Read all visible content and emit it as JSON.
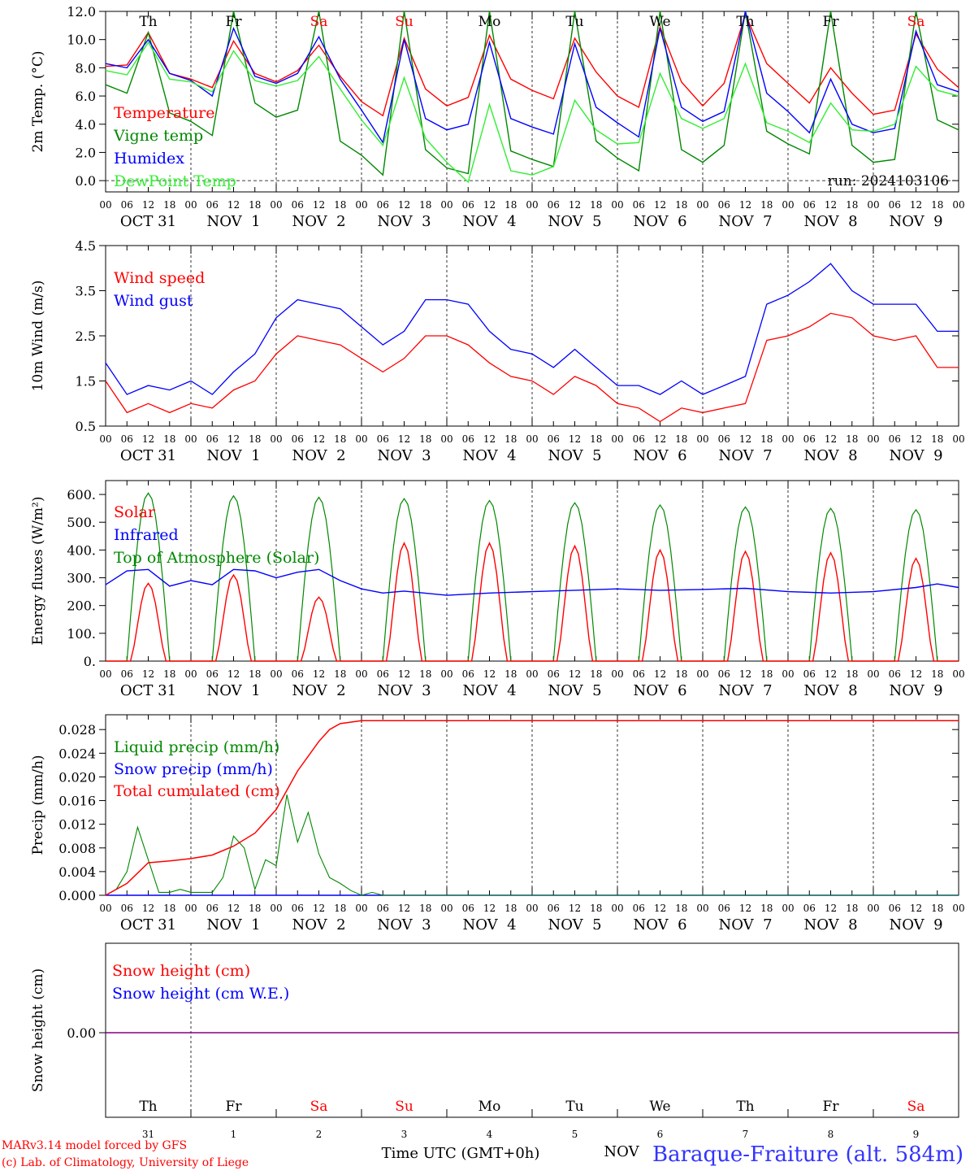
{
  "meteogram": {
    "run_label": "run: 2024103106",
    "days": [
      "Th",
      "Fr",
      "Sa",
      "Su",
      "Mo",
      "Tu",
      "We",
      "Th",
      "Fr",
      "Sa"
    ],
    "day_colors": [
      "#000000",
      "#000000",
      "#ff0000",
      "#ff0000",
      "#000000",
      "#000000",
      "#000000",
      "#000000",
      "#000000",
      "#ff0000"
    ],
    "date_labels": [
      "OCT 31",
      "NOV  1",
      "NOV  2",
      "NOV  3",
      "NOV  4",
      "NOV  5",
      "NOV  6",
      "NOV  7",
      "NOV  8",
      "NOV  9"
    ],
    "hour_labels": [
      "00",
      "06",
      "12",
      "18"
    ],
    "bottom_day_numbers": [
      "31",
      "1",
      "2",
      "3",
      "4",
      "5",
      "6",
      "7",
      "8",
      "9"
    ],
    "bottom_month": "NOV",
    "xlabel": "Time UTC (GMT+0h)",
    "footer_left": [
      "MARv3.14 model forced by GFS",
      "(c) Lab. of Climatology, University of Liege"
    ],
    "footer_right": "Baraque-Fraiture (alt. 584m)",
    "colors": {
      "red": "#ff0000",
      "green": "#008800",
      "blue": "#0000ff",
      "light_green": "#33ee33",
      "purple": "#800080"
    }
  },
  "chart_data": [
    {
      "type": "line",
      "ylabel": "2m Temp. (°C)",
      "ylim": [
        -0.8,
        12.0
      ],
      "yticks": [
        "0.0",
        "2.0",
        "4.0",
        "6.0",
        "8.0",
        "10.0",
        "12.0"
      ],
      "ytick_values": [
        0,
        2,
        4,
        6,
        8,
        10,
        12
      ],
      "reference_line": 0,
      "x_hours": [
        0,
        6,
        12,
        18,
        24,
        30,
        36,
        42,
        48,
        54,
        60,
        66,
        72,
        78,
        84,
        90,
        96,
        102,
        108,
        114,
        120,
        126,
        132,
        138,
        144,
        150,
        156,
        162,
        168,
        174,
        180,
        186,
        192,
        198,
        204,
        210,
        216,
        222,
        228,
        234,
        240
      ],
      "series": [
        {
          "name": "Temperature",
          "color": "#ff0000",
          "values": [
            8.1,
            8.2,
            10.5,
            7.6,
            7.2,
            6.6,
            9.9,
            7.6,
            7.0,
            7.8,
            9.6,
            7.4,
            5.6,
            4.6,
            10.1,
            6.5,
            5.3,
            5.9,
            10.3,
            7.2,
            6.4,
            5.8,
            10.1,
            7.7,
            6.0,
            5.2,
            10.9,
            7.0,
            5.3,
            6.9,
            11.8,
            8.3,
            6.9,
            5.5,
            8.0,
            6.2,
            4.7,
            5.0,
            10.4,
            7.9,
            6.6
          ]
        },
        {
          "name": "Vigne temp",
          "color": "#008800",
          "values": [
            6.8,
            6.2,
            10.5,
            4.8,
            4.2,
            3.2,
            12.0,
            5.5,
            4.5,
            5.0,
            12.0,
            2.8,
            1.8,
            0.4,
            12.0,
            2.2,
            0.9,
            0.5,
            12.0,
            2.1,
            1.5,
            1.0,
            12.0,
            2.8,
            1.6,
            0.7,
            12.0,
            2.2,
            1.3,
            2.5,
            12.0,
            3.5,
            2.6,
            1.9,
            12.0,
            2.5,
            1.3,
            1.5,
            12.0,
            4.3,
            3.6
          ]
        },
        {
          "name": "Humidex",
          "color": "#0000ff",
          "values": [
            8.3,
            8.0,
            10.0,
            7.6,
            7.1,
            6.0,
            10.8,
            7.4,
            6.9,
            7.6,
            10.2,
            7.2,
            5.0,
            2.7,
            10.0,
            4.4,
            3.6,
            4.0,
            9.8,
            4.4,
            3.8,
            3.3,
            9.7,
            5.2,
            4.1,
            3.1,
            10.8,
            5.2,
            4.2,
            4.9,
            12.0,
            6.2,
            4.9,
            3.4,
            7.2,
            4.0,
            3.4,
            3.7,
            10.6,
            6.8,
            6.3
          ]
        },
        {
          "name": "DewPoint Temp",
          "color": "#33ee33",
          "values": [
            7.8,
            7.5,
            9.8,
            7.2,
            7.0,
            6.3,
            9.2,
            7.1,
            6.7,
            7.1,
            8.8,
            6.5,
            4.3,
            2.5,
            7.3,
            3.0,
            1.3,
            -0.1,
            5.4,
            0.7,
            0.4,
            1.0,
            5.7,
            3.6,
            2.6,
            2.7,
            7.6,
            4.4,
            3.7,
            4.4,
            8.3,
            4.1,
            3.5,
            2.7,
            5.5,
            3.6,
            3.5,
            4.0,
            8.1,
            6.4,
            6.0
          ]
        }
      ]
    },
    {
      "type": "line",
      "ylabel": "10m Wind (m/s)",
      "ylim": [
        0.5,
        4.5
      ],
      "yticks": [
        "0.5",
        "1.5",
        "2.5",
        "3.5",
        "4.5"
      ],
      "ytick_values": [
        0.5,
        1.5,
        2.5,
        3.5,
        4.5
      ],
      "x_hours": [
        0,
        6,
        12,
        18,
        24,
        30,
        36,
        42,
        48,
        54,
        60,
        66,
        72,
        78,
        84,
        90,
        96,
        102,
        108,
        114,
        120,
        126,
        132,
        138,
        144,
        150,
        156,
        162,
        168,
        174,
        180,
        186,
        192,
        198,
        204,
        210,
        216,
        222,
        228,
        234,
        240
      ],
      "series": [
        {
          "name": "Wind speed",
          "color": "#ff0000",
          "values": [
            1.5,
            0.8,
            1.0,
            0.8,
            1.0,
            0.9,
            1.3,
            1.5,
            2.1,
            2.5,
            2.4,
            2.3,
            2.0,
            1.7,
            2.0,
            2.5,
            2.5,
            2.3,
            1.9,
            1.6,
            1.5,
            1.2,
            1.6,
            1.4,
            1.0,
            0.9,
            0.6,
            0.9,
            0.8,
            0.9,
            1.0,
            2.4,
            2.5,
            2.7,
            3.0,
            2.9,
            2.5,
            2.4,
            2.5,
            1.8,
            1.8
          ]
        },
        {
          "name": "Wind gust",
          "color": "#0000ff",
          "values": [
            1.9,
            1.2,
            1.4,
            1.3,
            1.5,
            1.2,
            1.7,
            2.1,
            2.9,
            3.3,
            3.2,
            3.1,
            2.7,
            2.3,
            2.6,
            3.3,
            3.3,
            3.2,
            2.6,
            2.2,
            2.1,
            1.8,
            2.2,
            1.8,
            1.4,
            1.4,
            1.2,
            1.5,
            1.2,
            1.4,
            1.6,
            3.2,
            3.4,
            3.7,
            4.1,
            3.5,
            3.2,
            3.2,
            3.2,
            2.6,
            2.6
          ]
        }
      ]
    },
    {
      "type": "line",
      "ylabel": "Energy fluxes (W/m²)",
      "ylim": [
        0,
        650
      ],
      "yticks": [
        "0.",
        "100.",
        "200.",
        "300.",
        "400.",
        "500.",
        "600."
      ],
      "ytick_values": [
        0,
        100,
        200,
        300,
        400,
        500,
        600
      ],
      "daily_peaks_solar": [
        280,
        310,
        230,
        425,
        425,
        415,
        400,
        395,
        390,
        370
      ],
      "daily_peaks_toa": [
        605,
        595,
        590,
        585,
        578,
        570,
        562,
        555,
        550,
        545
      ],
      "infrared": {
        "x_hours": [
          0,
          6,
          12,
          18,
          24,
          30,
          36,
          42,
          48,
          54,
          60,
          66,
          72,
          78,
          84,
          96,
          108,
          120,
          132,
          144,
          156,
          168,
          180,
          192,
          204,
          216,
          228,
          234,
          240
        ],
        "values": [
          275,
          325,
          330,
          270,
          290,
          275,
          330,
          325,
          300,
          320,
          330,
          290,
          260,
          245,
          252,
          237,
          245,
          250,
          255,
          260,
          255,
          258,
          262,
          250,
          245,
          250,
          265,
          278,
          265
        ]
      },
      "series": [
        {
          "name": "Solar",
          "color": "#ff0000"
        },
        {
          "name": "Infrared",
          "color": "#0000ff"
        },
        {
          "name": "Top of Atmosphere (Solar)",
          "color": "#008800"
        }
      ]
    },
    {
      "type": "line",
      "ylabel": "Precip (mm/h)",
      "ylim": [
        0,
        0.0305
      ],
      "yticks": [
        "0.000",
        "0.004",
        "0.008",
        "0.012",
        "0.016",
        "0.020",
        "0.024",
        "0.028"
      ],
      "ytick_values": [
        0,
        0.004,
        0.008,
        0.012,
        0.016,
        0.02,
        0.024,
        0.028
      ],
      "liquid": {
        "x_hours": [
          0,
          3,
          6,
          9,
          12,
          15,
          18,
          21,
          24,
          27,
          30,
          33,
          36,
          39,
          42,
          45,
          48,
          51,
          54,
          57,
          60,
          63,
          66,
          69,
          72,
          75,
          78,
          240
        ],
        "values": [
          0,
          0.001,
          0.004,
          0.0115,
          0.006,
          0.0005,
          0.0005,
          0.001,
          0.0005,
          0.0005,
          0.0005,
          0.003,
          0.01,
          0.008,
          0.001,
          0.006,
          0.005,
          0.017,
          0.009,
          0.014,
          0.007,
          0.003,
          0.002,
          0.0008,
          0,
          0.0005,
          0,
          0
        ]
      },
      "cumulated": {
        "x_hours": [
          0,
          6,
          12,
          18,
          24,
          30,
          36,
          42,
          48,
          54,
          60,
          63,
          66,
          72,
          78,
          240
        ],
        "values": [
          0,
          0.002,
          0.0055,
          0.0058,
          0.0062,
          0.0068,
          0.0083,
          0.0105,
          0.0145,
          0.021,
          0.026,
          0.028,
          0.029,
          0.0295,
          0.0295,
          0.0295
        ]
      },
      "series": [
        {
          "name": "Liquid precip (mm/h)",
          "color": "#008800"
        },
        {
          "name": "Snow precip (mm/h)",
          "color": "#0000ff"
        },
        {
          "name": "Total cumulated (cm)",
          "color": "#ff0000"
        }
      ]
    },
    {
      "type": "line",
      "ylabel": "Snow height (cm)",
      "yticks": [
        "0.00"
      ],
      "value": 0.0,
      "series": [
        {
          "name": "Snow height (cm)",
          "color": "#ff0000"
        },
        {
          "name": "Snow height (cm W.E.)",
          "color": "#0000ff"
        }
      ]
    }
  ]
}
